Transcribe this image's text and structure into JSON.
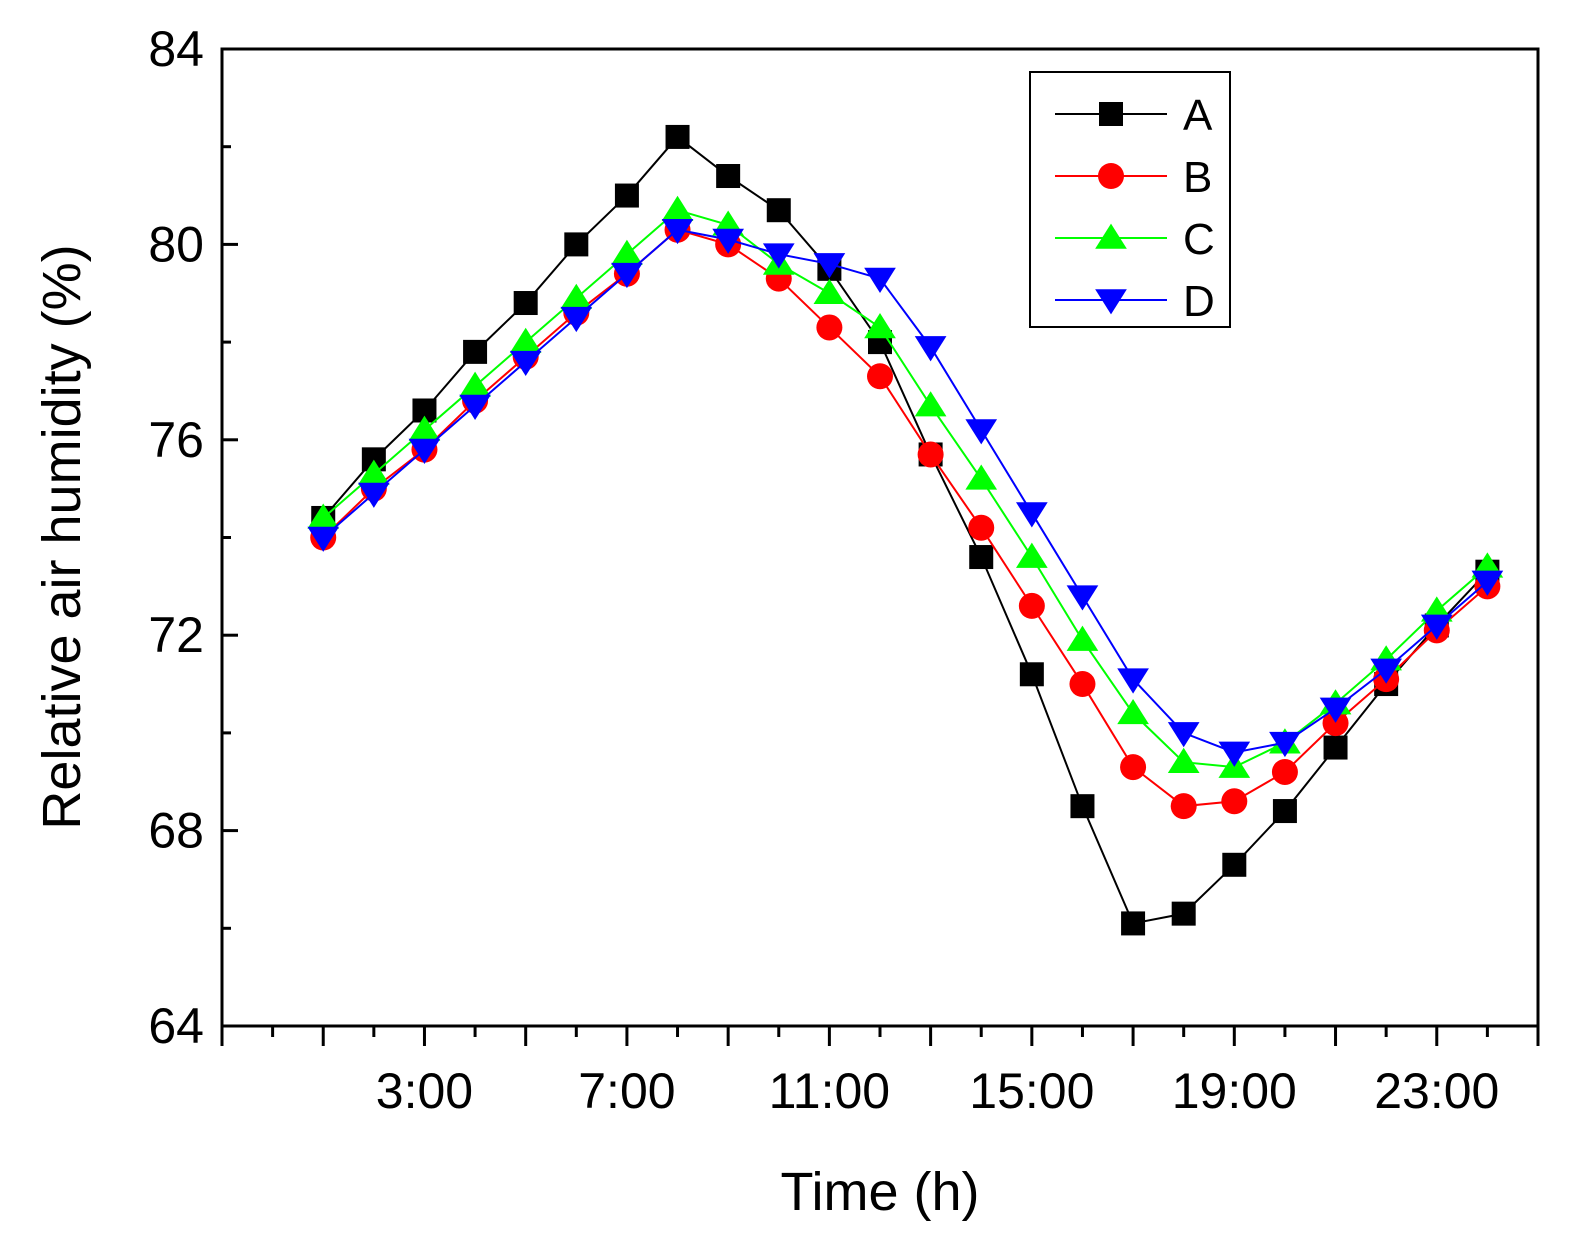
{
  "chart_data": {
    "type": "line",
    "title": "",
    "xlabel": "Time (h)",
    "ylabel": "Relative air humidity (%)",
    "xlim": [
      -1,
      25
    ],
    "ylim": [
      64,
      84
    ],
    "x": [
      1,
      2,
      3,
      4,
      5,
      6,
      7,
      8,
      9,
      10,
      11,
      12,
      13,
      14,
      15,
      16,
      17,
      18,
      19,
      20,
      21,
      22,
      23,
      24
    ],
    "x_ticks": [
      {
        "value": 3,
        "label": "3:00"
      },
      {
        "value": 7,
        "label": "7:00"
      },
      {
        "value": 11,
        "label": "11:00"
      },
      {
        "value": 15,
        "label": "15:00"
      },
      {
        "value": 19,
        "label": "19:00"
      },
      {
        "value": 23,
        "label": "23:00"
      }
    ],
    "y_ticks": [
      64,
      68,
      72,
      76,
      80,
      84
    ],
    "legend_position": "top-right",
    "grid": false,
    "series": [
      {
        "name": "A",
        "color": "#000000",
        "marker": "square",
        "values": [
          74.4,
          75.6,
          76.6,
          77.8,
          78.8,
          80.0,
          81.0,
          82.2,
          81.4,
          80.7,
          79.5,
          78.0,
          75.7,
          73.6,
          71.2,
          68.5,
          66.1,
          66.3,
          67.3,
          68.4,
          69.7,
          71.0,
          72.2,
          73.3
        ]
      },
      {
        "name": "B",
        "color": "#ff0000",
        "marker": "circle",
        "values": [
          74.0,
          75.0,
          75.8,
          76.8,
          77.7,
          78.6,
          79.4,
          80.3,
          80.0,
          79.3,
          78.3,
          77.3,
          75.7,
          74.2,
          72.6,
          71.0,
          69.3,
          68.5,
          68.6,
          69.2,
          70.2,
          71.1,
          72.1,
          73.0
        ]
      },
      {
        "name": "C",
        "color": "#00ff00",
        "marker": "triangle-up",
        "values": [
          74.4,
          75.3,
          76.2,
          77.1,
          78.0,
          78.9,
          79.8,
          80.7,
          80.4,
          79.6,
          79.0,
          78.3,
          76.7,
          75.2,
          73.6,
          71.9,
          70.4,
          69.4,
          69.3,
          69.8,
          70.6,
          71.5,
          72.5,
          73.4
        ]
      },
      {
        "name": "D",
        "color": "#0000ff",
        "marker": "triangle-down",
        "values": [
          74.0,
          74.9,
          75.8,
          76.7,
          77.6,
          78.5,
          79.4,
          80.3,
          80.1,
          79.8,
          79.6,
          79.3,
          77.9,
          76.2,
          74.5,
          72.8,
          71.1,
          70.0,
          69.6,
          69.8,
          70.5,
          71.3,
          72.2,
          73.1
        ]
      }
    ]
  }
}
